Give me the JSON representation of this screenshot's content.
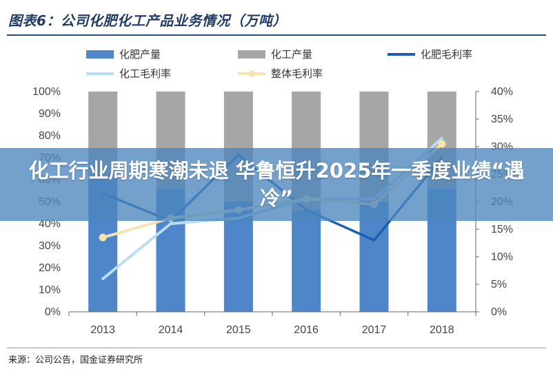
{
  "figure": {
    "title": "图表6：公司化肥化工产品业务情况（万吨）",
    "source": "来源：公司公告，国金证券研究所"
  },
  "banner": {
    "headline": "化工行业周期寒潮未退 华鲁恒升2025年一季度业绩“遇冷”"
  },
  "chart_data": {
    "type": "bar",
    "categories": [
      "2013",
      "2014",
      "2015",
      "2016",
      "2017",
      "2018"
    ],
    "stacked_percent": true,
    "series": [
      {
        "name": "化肥产量",
        "kind": "bar",
        "axis": "left",
        "color": "#4f86c9",
        "values": [
          60,
          56,
          50,
          46,
          50,
          56
        ]
      },
      {
        "name": "化工产量",
        "kind": "bar",
        "axis": "left",
        "color": "#a6a6a6",
        "values": [
          40,
          44,
          50,
          54,
          50,
          44
        ]
      },
      {
        "name": "化肥毛利率",
        "kind": "line",
        "axis": "right",
        "color": "#1a5fb4",
        "values": [
          21.5,
          16.5,
          28.5,
          18.5,
          13,
          28
        ]
      },
      {
        "name": "化工毛利率",
        "kind": "line",
        "axis": "right",
        "color": "#b9def2",
        "values": [
          6,
          16,
          17,
          20.5,
          20.5,
          31.5
        ]
      },
      {
        "name": "整体毛利率",
        "kind": "line",
        "axis": "right",
        "color": "#f6e3b0",
        "values": [
          13.5,
          17,
          18.5,
          20.5,
          19.5,
          30.5
        ]
      }
    ],
    "left_axis": {
      "ticks": [
        "0%",
        "10%",
        "20%",
        "30%",
        "40%",
        "50%",
        "60%",
        "70%",
        "80%",
        "90%",
        "100%"
      ],
      "ylim": [
        0,
        100
      ]
    },
    "right_axis": {
      "ticks": [
        "0%",
        "5%",
        "10%",
        "15%",
        "20%",
        "25%",
        "30%",
        "35%",
        "40%"
      ],
      "ylim": [
        0,
        40
      ]
    },
    "legend": "top",
    "grid": false
  }
}
